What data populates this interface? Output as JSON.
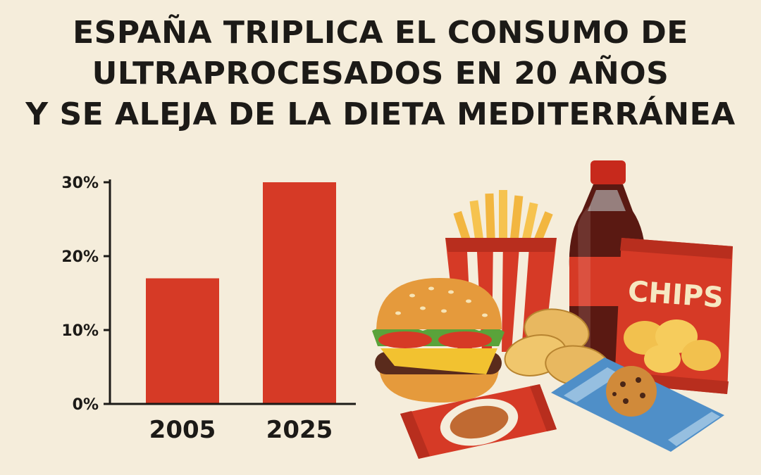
{
  "title_lines": [
    "ESPAÑA TRIPLICA EL CONSUMO DE",
    "ULTRAPROCESADOS EN 20 AÑOS",
    "Y SE ALEJA DE LA DIETA MEDITERRÁNEA"
  ],
  "chart_data": {
    "type": "bar",
    "categories": [
      "2005",
      "2025"
    ],
    "values": [
      17,
      30
    ],
    "y_ticks": [
      "0%",
      "10%",
      "20%",
      "30%"
    ],
    "ylim": [
      0,
      30
    ],
    "grid": false,
    "legend": "none",
    "bar_color": "#d63a26"
  },
  "illustration": {
    "items": [
      "burger-icon",
      "french-fries-icon",
      "soda-bottle-icon",
      "chips-bag-icon",
      "potato-chips-icon",
      "cookie-pack-icon",
      "snack-wrapper-icon"
    ],
    "chips_label": "CHIPS"
  },
  "colors": {
    "background": "#f5eddb",
    "bar": "#d63a26",
    "text": "#1c1a17"
  }
}
